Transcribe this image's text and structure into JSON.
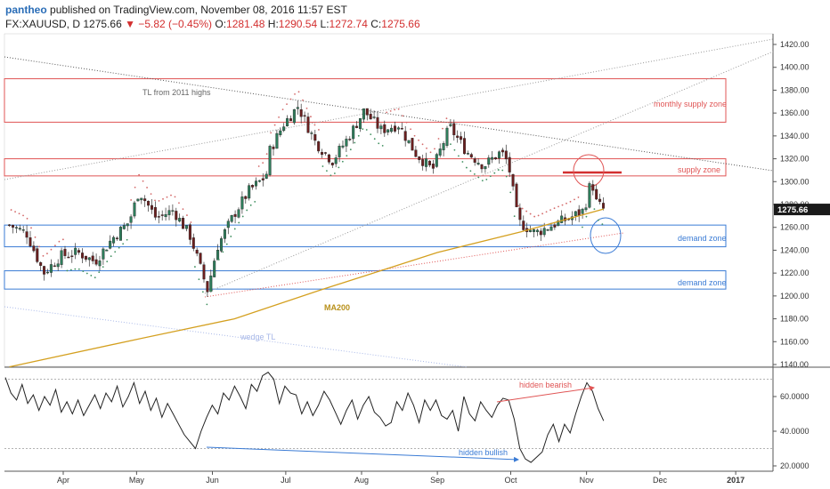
{
  "header": {
    "author": "pantheo",
    "published": "published on TradingView.com, November 08, 2016 11:57 EST",
    "symbol": "FX:XAUUSD, D",
    "last": "1275.66",
    "change": "▼ −5.82 (−0.45%)",
    "o_label": "O:",
    "o_val": "1281.48",
    "h_label": "H:",
    "h_val": "1290.54",
    "l_label": "L:",
    "l_val": "1272.74",
    "c_label": "C:",
    "c_val": "1275.66"
  },
  "chart_data": [
    {
      "type": "candlestick",
      "symbol": "FX:XAUUSD",
      "interval": "D",
      "ylim": [
        1140,
        1425
      ],
      "y_ticks": [
        "1420.00",
        "1400.00",
        "1380.00",
        "1360.00",
        "1340.00",
        "1320.00",
        "1300.00",
        "1280.00",
        "1260.00",
        "1240.00",
        "1220.00",
        "1200.00",
        "1180.00",
        "1160.00",
        "1140.00"
      ],
      "last_price_label": "1275.66",
      "x_labels": [
        "Apr",
        "May",
        "Jun",
        "Jul",
        "Aug",
        "Sep",
        "Oct",
        "Nov",
        "Dec",
        "2017"
      ],
      "close_path": [
        [
          "2016-03-10",
          1262
        ],
        [
          "2016-03-17",
          1255
        ],
        [
          "2016-03-24",
          1220
        ],
        [
          "2016-03-31",
          1235
        ],
        [
          "2016-04-07",
          1238
        ],
        [
          "2016-04-14",
          1230
        ],
        [
          "2016-04-21",
          1250
        ],
        [
          "2016-04-28",
          1265
        ],
        [
          "2016-05-02",
          1292
        ],
        [
          "2016-05-09",
          1268
        ],
        [
          "2016-05-16",
          1275
        ],
        [
          "2016-05-23",
          1252
        ],
        [
          "2016-05-30",
          1205
        ],
        [
          "2016-06-03",
          1243
        ],
        [
          "2016-06-10",
          1272
        ],
        [
          "2016-06-16",
          1292
        ],
        [
          "2016-06-23",
          1305
        ],
        [
          "2016-06-24",
          1325
        ],
        [
          "2016-06-30",
          1350
        ],
        [
          "2016-07-06",
          1366
        ],
        [
          "2016-07-13",
          1335
        ],
        [
          "2016-07-20",
          1318
        ],
        [
          "2016-07-27",
          1340
        ],
        [
          "2016-08-02",
          1362
        ],
        [
          "2016-08-09",
          1345
        ],
        [
          "2016-08-16",
          1350
        ],
        [
          "2016-08-23",
          1325
        ],
        [
          "2016-08-30",
          1310
        ],
        [
          "2016-09-06",
          1348
        ],
        [
          "2016-09-13",
          1326
        ],
        [
          "2016-09-20",
          1314
        ],
        [
          "2016-09-27",
          1326
        ],
        [
          "2016-09-30",
          1316
        ],
        [
          "2016-10-04",
          1265
        ],
        [
          "2016-10-11",
          1255
        ],
        [
          "2016-10-18",
          1262
        ],
        [
          "2016-10-25",
          1268
        ],
        [
          "2016-10-31",
          1275
        ],
        [
          "2016-11-03",
          1302
        ],
        [
          "2016-11-05",
          1282
        ],
        [
          "2016-11-08",
          1275.66
        ]
      ],
      "ma200_label": "MA200",
      "ma200_path": [
        [
          "2016-03-10",
          1138
        ],
        [
          "2016-05-01",
          1162
        ],
        [
          "2016-06-10",
          1180
        ],
        [
          "2016-07-15",
          1205
        ],
        [
          "2016-09-01",
          1238
        ],
        [
          "2016-10-05",
          1256
        ],
        [
          "2016-11-08",
          1276
        ]
      ],
      "zones": [
        {
          "label": "monthly supply zone",
          "from": 1352,
          "to": 1390,
          "color": "#e05555"
        },
        {
          "label": "supply zone",
          "from": 1305,
          "to": 1320,
          "color": "#e05555"
        },
        {
          "label": "demand zone",
          "from": 1243,
          "to": 1262,
          "color": "#3a7bd5"
        },
        {
          "label": "demand zone",
          "from": 1206,
          "to": 1222,
          "color": "#3a7bd5"
        }
      ],
      "annotations": [
        "TL from 2011 highs",
        "MA200",
        "wedge TL"
      ]
    },
    {
      "type": "line",
      "indicator": "oscillator",
      "y_ticks": [
        "60.0000",
        "40.0000",
        "20.0000"
      ],
      "ylim": [
        19,
        74
      ],
      "levels": [
        70,
        30
      ],
      "values": [
        71,
        62,
        58,
        67,
        56,
        61,
        52,
        60,
        55,
        64,
        51,
        57,
        50,
        58,
        49,
        55,
        61,
        53,
        62,
        57,
        66,
        54,
        60,
        68,
        56,
        63,
        52,
        59,
        48,
        56,
        50,
        44,
        38,
        34,
        30,
        40,
        48,
        55,
        50,
        62,
        58,
        66,
        60,
        53,
        67,
        63,
        72,
        74,
        70,
        56,
        66,
        62,
        61,
        50,
        57,
        49,
        55,
        63,
        58,
        51,
        44,
        52,
        58,
        47,
        55,
        60,
        51,
        48,
        43,
        45,
        57,
        52,
        62,
        55,
        45,
        58,
        52,
        58,
        49,
        47,
        52,
        40,
        60,
        50,
        46,
        57,
        52,
        48,
        55,
        59,
        58,
        47,
        30,
        24,
        22,
        25,
        28,
        38,
        44,
        34,
        44,
        39,
        50,
        60,
        68,
        63,
        53,
        46
      ]
    }
  ],
  "labels": {
    "tl_2011": "TL from 2011 highs",
    "ma200": "MA200",
    "wedge_tl": "wedge TL",
    "monthly_supply": "monthly supply zone",
    "supply": "supply zone",
    "demand1": "demand zone",
    "demand2": "demand zone",
    "hidden_bearish": "hidden bearish",
    "hidden_bullish": "hidden bullish"
  },
  "colors": {
    "supply": "#e05555",
    "demand": "#3a7bd5",
    "ma200": "#d4a020",
    "up_candle": "#2e7d5b",
    "down_candle": "#6b1f1f",
    "accent": "#2a6db7"
  }
}
